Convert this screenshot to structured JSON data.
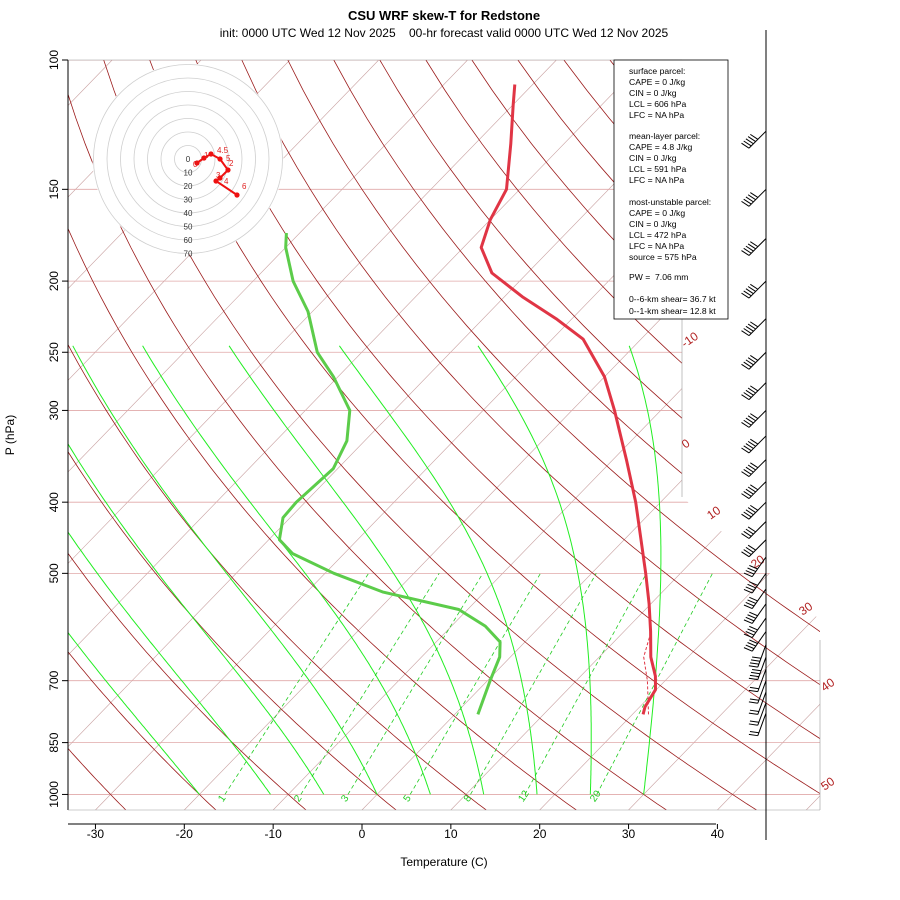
{
  "title": "CSU WRF skew-T for Redstone",
  "subtitle": "init: 0000 UTC Wed 12 Nov 2025    00-hr forecast valid 0000 UTC Wed 12 Nov 2025",
  "chart_data": {
    "type": "line",
    "title": "CSU WRF skew-T for Redstone",
    "xlabel": "Temperature (C)",
    "ylabel": "P (hPa)",
    "xlim": [
      -33,
      45
    ],
    "ylim": [
      1050,
      100
    ],
    "x_ticks": [
      -30,
      -20,
      -10,
      0,
      10,
      20,
      30,
      40
    ],
    "p_ticks": [
      100,
      150,
      200,
      250,
      300,
      400,
      500,
      700,
      850,
      1000
    ],
    "dry_adiabat_labels": [
      "-10",
      "0",
      "10",
      "20",
      "30",
      "40",
      "50"
    ],
    "mixing_ratio_labels": [
      "1",
      "2",
      "3",
      "5",
      "8",
      "12",
      "20"
    ],
    "temperature_profile": [
      {
        "p": 778,
        "t": 21.2
      },
      {
        "p": 760,
        "t": 20.6
      },
      {
        "p": 720,
        "t": 19.9
      },
      {
        "p": 690,
        "t": 18.4
      },
      {
        "p": 650,
        "t": 15.8
      },
      {
        "p": 600,
        "t": 13.0
      },
      {
        "p": 550,
        "t": 9.8
      },
      {
        "p": 500,
        "t": 6.1
      },
      {
        "p": 450,
        "t": 1.9
      },
      {
        "p": 400,
        "t": -2.8
      },
      {
        "p": 350,
        "t": -8.5
      },
      {
        "p": 300,
        "t": -15.2
      },
      {
        "p": 270,
        "t": -20.0
      },
      {
        "p": 240,
        "t": -26.5
      },
      {
        "p": 225,
        "t": -31.8
      },
      {
        "p": 210,
        "t": -38.0
      },
      {
        "p": 195,
        "t": -44.0
      },
      {
        "p": 180,
        "t": -48.0
      },
      {
        "p": 165,
        "t": -50.0
      },
      {
        "p": 150,
        "t": -51.5
      },
      {
        "p": 130,
        "t": -56.0
      },
      {
        "p": 115,
        "t": -60.0
      },
      {
        "p": 108,
        "t": -62.0
      }
    ],
    "dewpoint_profile": [
      {
        "p": 778,
        "t": 2.6
      },
      {
        "p": 750,
        "t": 1.8
      },
      {
        "p": 700,
        "t": 0.3
      },
      {
        "p": 650,
        "t": -1.2
      },
      {
        "p": 620,
        "t": -2.8
      },
      {
        "p": 590,
        "t": -6.2
      },
      {
        "p": 560,
        "t": -11.0
      },
      {
        "p": 530,
        "t": -21.5
      },
      {
        "p": 500,
        "t": -29.0
      },
      {
        "p": 470,
        "t": -35.8
      },
      {
        "p": 450,
        "t": -38.8
      },
      {
        "p": 420,
        "t": -40.8
      },
      {
        "p": 400,
        "t": -41.0
      },
      {
        "p": 360,
        "t": -40.5
      },
      {
        "p": 330,
        "t": -42.0
      },
      {
        "p": 300,
        "t": -45.0
      },
      {
        "p": 270,
        "t": -50.5
      },
      {
        "p": 250,
        "t": -55.0
      },
      {
        "p": 220,
        "t": -60.5
      },
      {
        "p": 200,
        "t": -65.5
      },
      {
        "p": 180,
        "t": -70.0
      },
      {
        "p": 172,
        "t": -71.5
      }
    ],
    "parcel_profile": [
      {
        "p": 778,
        "t": 21.8
      },
      {
        "p": 740,
        "t": 20.0
      },
      {
        "p": 700,
        "t": 18.0
      },
      {
        "p": 650,
        "t": 15.0
      },
      {
        "p": 606,
        "t": 13.3
      }
    ],
    "hodograph": {
      "rings_kt": [
        "10",
        "20",
        "30",
        "40",
        "50",
        "60",
        "70"
      ],
      "origin_label": "0",
      "point_labels": [
        "0",
        "1",
        "2",
        "3",
        "4",
        "4.5",
        "5",
        "6"
      ]
    },
    "stats": {
      "surface": [
        "surface parcel:",
        "CAPE = 0 J/kg",
        "CIN = 0 J/kg",
        "LCL = 606 hPa",
        "LFC = NA hPa"
      ],
      "mean_layer": [
        "mean-layer parcel:",
        "CAPE = 4.8 J/kg",
        "CIN = 0 J/kg",
        "LCL = 591 hPa",
        "LFC = NA hPa"
      ],
      "most_unstable": [
        "most-unstable parcel:",
        "CAPE = 0 J/kg",
        "CIN = 0 J/kg",
        "LCL = 472 hPa",
        "LFC = NA hPa",
        "source = 575 hPa"
      ],
      "pw": "PW =  7.06 mm",
      "shear": [
        "0--6-km shear= 36.7 kt",
        "0--1-km shear= 12.8 kt"
      ]
    },
    "colors": {
      "temperature": "#e03545",
      "dewpoint": "#5ccc4a",
      "dry_adiabat": "#9b1b1b",
      "moist_adiabat": "#22ee22",
      "mixing_ratio": "#22cc22",
      "isotherm": "#c8a0a0",
      "isobar": "#e0a8a8",
      "hodograph": "#ee1111"
    }
  }
}
